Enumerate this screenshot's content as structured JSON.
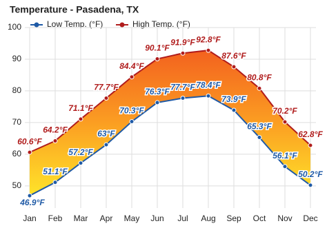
{
  "chart_data": {
    "type": "line",
    "title": "Temperature - Pasadena, TX",
    "categories": [
      "Jan",
      "Feb",
      "Mar",
      "Apr",
      "May",
      "Jun",
      "Jul",
      "Aug",
      "Sep",
      "Oct",
      "Nov",
      "Dec"
    ],
    "series": [
      {
        "name": "Low Temp. (°F)",
        "color": "#1f5aa6",
        "values": [
          46.9,
          51.1,
          57.2,
          63,
          70.3,
          76.3,
          77.7,
          78.4,
          73.9,
          65.3,
          56.1,
          50.2
        ],
        "value_labels": [
          "46.9°F",
          "51.1°F",
          "57.2°F",
          "63°F",
          "70.3°F",
          "76.3°F",
          "77.7°F",
          "78.4°F",
          "73.9°F",
          "65.3°F",
          "56.1°F",
          "50.2°F"
        ]
      },
      {
        "name": "High Temp. (°F)",
        "color": "#b01c1c",
        "values": [
          60.6,
          64.2,
          71.1,
          77.7,
          84.4,
          90.1,
          91.9,
          92.8,
          87.6,
          80.8,
          70.2,
          62.8
        ],
        "value_labels": [
          "60.6°F",
          "64.2°F",
          "71.1°F",
          "77.7°F",
          "84.4°F",
          "90.1°F",
          "91.9°F",
          "92.8°F",
          "87.6°F",
          "80.8°F",
          "70.2°F",
          "62.8°F"
        ]
      }
    ],
    "ylim": [
      43,
      100
    ],
    "yticks": [
      50,
      60,
      70,
      80,
      90,
      100
    ],
    "grid": true
  }
}
